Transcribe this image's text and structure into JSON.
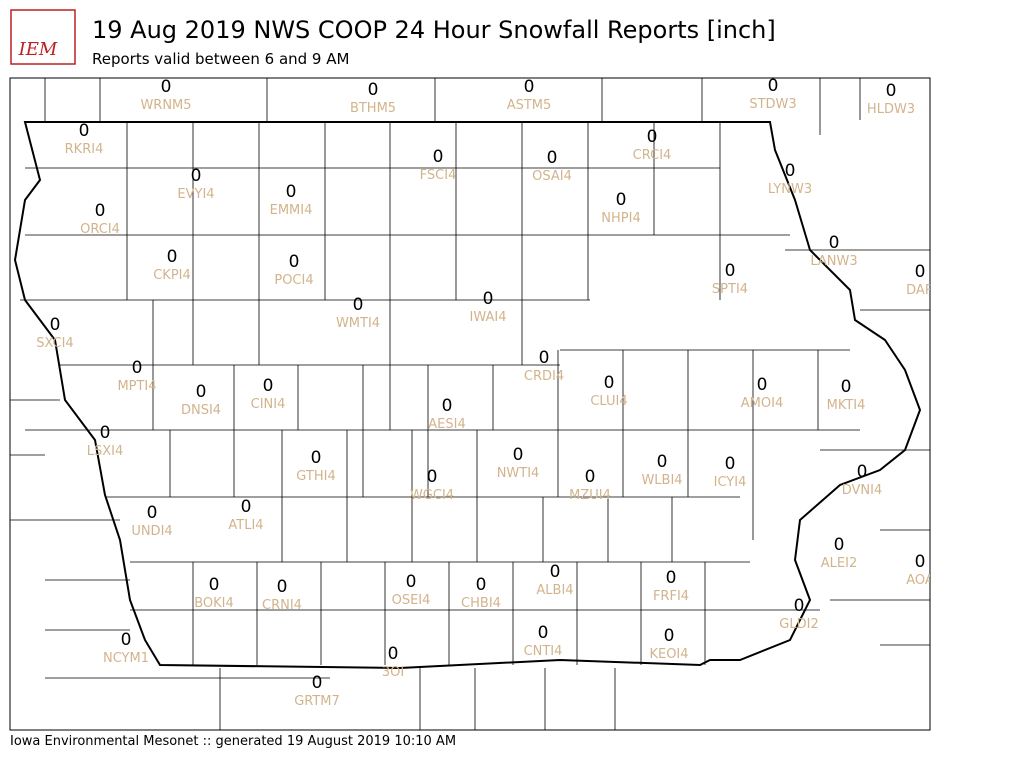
{
  "header": {
    "title": "19 Aug 2019 NWS COOP 24 Hour Snowfall Reports [inch]",
    "subtitle": "Reports valid between 6 and 9 AM",
    "logo": "IEM"
  },
  "stations": [
    {
      "id": "WRNM5",
      "value": 0
    },
    {
      "id": "BTHM5",
      "value": 0
    },
    {
      "id": "ASTM5",
      "value": 0
    },
    {
      "id": "STDW3",
      "value": 0
    },
    {
      "id": "HLDW3",
      "value": 0
    },
    {
      "id": "RKRI4",
      "value": 0
    },
    {
      "id": "CRCI4",
      "value": 0
    },
    {
      "id": "FSCI4",
      "value": 0
    },
    {
      "id": "OSAI4",
      "value": 0
    },
    {
      "id": "EVYI4",
      "value": 0
    },
    {
      "id": "LYNW3",
      "value": 0
    },
    {
      "id": "EMMI4",
      "value": 0
    },
    {
      "id": "NHPI4",
      "value": 0
    },
    {
      "id": "ORCI4",
      "value": 0
    },
    {
      "id": "LANW3",
      "value": 0
    },
    {
      "id": "CKPI4",
      "value": 0
    },
    {
      "id": "POCI4",
      "value": 0
    },
    {
      "id": "SPTI4",
      "value": 0
    },
    {
      "id": "DAR",
      "value": 0
    },
    {
      "id": "WMTI4",
      "value": 0
    },
    {
      "id": "IWAI4",
      "value": 0
    },
    {
      "id": "SXCI4",
      "value": 0
    },
    {
      "id": "CRDI4",
      "value": 0
    },
    {
      "id": "MPTI4",
      "value": 0
    },
    {
      "id": "CLUI4",
      "value": 0
    },
    {
      "id": "AMOI4",
      "value": 0
    },
    {
      "id": "MKTI4",
      "value": 0
    },
    {
      "id": "DNSI4",
      "value": 0
    },
    {
      "id": "CINI4",
      "value": 0
    },
    {
      "id": "AESI4",
      "value": 0
    },
    {
      "id": "LSXI4",
      "value": 0
    },
    {
      "id": "NWTI4",
      "value": 0
    },
    {
      "id": "GTHI4",
      "value": 0
    },
    {
      "id": "WLBI4",
      "value": 0
    },
    {
      "id": "ICYI4",
      "value": 0
    },
    {
      "id": "DVNI4",
      "value": 0
    },
    {
      "id": "WGCI4",
      "value": 0
    },
    {
      "id": "MZUI4",
      "value": 0
    },
    {
      "id": "ATLI4",
      "value": 0
    },
    {
      "id": "UNDI4",
      "value": 0
    },
    {
      "id": "ALEI2",
      "value": 0
    },
    {
      "id": "AOA",
      "value": 0
    },
    {
      "id": "OSEI4",
      "value": 0
    },
    {
      "id": "ALBI4",
      "value": 0
    },
    {
      "id": "FRFI4",
      "value": 0
    },
    {
      "id": "BOKI4",
      "value": 0
    },
    {
      "id": "CRNI4",
      "value": 0
    },
    {
      "id": "CHBI4",
      "value": 0
    },
    {
      "id": "GLDI2",
      "value": 0
    },
    {
      "id": "NCYM1",
      "value": 0
    },
    {
      "id": "CNTI4",
      "value": 0
    },
    {
      "id": "KEOI4",
      "value": 0
    },
    {
      "id": "3OI",
      "value": 0
    },
    {
      "id": "GRTM7",
      "value": 0
    }
  ],
  "footer": "Iowa Environmental Mesonet :: generated 19 August 2019 10:10 AM"
}
